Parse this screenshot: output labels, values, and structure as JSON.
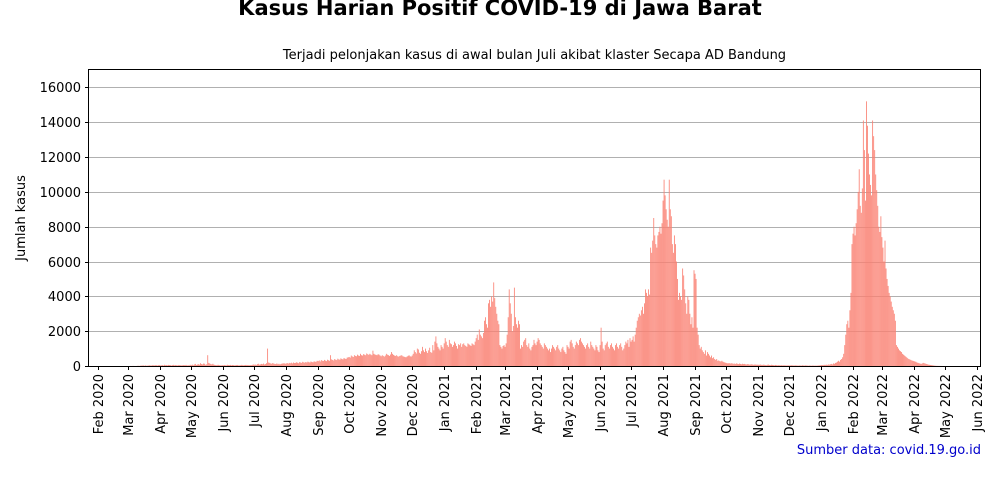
{
  "chart_data": {
    "type": "bar",
    "title": "Kasus Harian Positif COVID-19 di Jawa Barat",
    "subtitle": "Terjadi pelonjakan kasus di awal bulan Juli akibat klaster Secapa AD Bandung",
    "xlabel": "",
    "ylabel": "Jumlah kasus",
    "ylim": [
      0,
      17000
    ],
    "y_ticks": [
      0,
      2000,
      4000,
      6000,
      8000,
      10000,
      12000,
      14000,
      16000
    ],
    "y_tick_labels": [
      "0",
      "2000",
      "4000",
      "6000",
      "8000",
      "10000",
      "12000",
      "14000",
      "16000"
    ],
    "x_ticks": [
      "2020-02-01",
      "2020-03-01",
      "2020-04-01",
      "2020-05-01",
      "2020-06-01",
      "2020-07-01",
      "2020-08-01",
      "2020-09-01",
      "2020-10-01",
      "2020-11-01",
      "2020-12-01",
      "2021-01-01",
      "2021-02-01",
      "2021-03-01",
      "2021-04-01",
      "2021-05-01",
      "2021-06-01",
      "2021-07-01",
      "2021-08-01",
      "2021-09-01",
      "2021-10-01",
      "2021-11-01",
      "2021-12-01",
      "2022-01-01",
      "2022-02-01",
      "2022-03-01",
      "2022-04-01",
      "2022-05-01",
      "2022-06-01"
    ],
    "x_tick_labels": [
      "Feb 2020",
      "Mar 2020",
      "Apr 2020",
      "May 2020",
      "Jun 2020",
      "Jul 2020",
      "Aug 2020",
      "Sep 2020",
      "Oct 2020",
      "Nov 2020",
      "Dec 2020",
      "Jan 2021",
      "Feb 2021",
      "Mar 2021",
      "Apr 2021",
      "May 2021",
      "Jun 2021",
      "Jul 2021",
      "Aug 2021",
      "Sep 2021",
      "Oct 2021",
      "Nov 2021",
      "Dec 2021",
      "Jan 2022",
      "Feb 2022",
      "Mar 2022",
      "Apr 2022",
      "May 2022",
      "Jun 2022"
    ],
    "xlim": [
      "2020-01-23",
      "2022-06-04"
    ],
    "grid": "horizontal",
    "color": "#fa8072",
    "series": [
      {
        "daily_from": "2020-03-01",
        "values": [
          0,
          0,
          3,
          2,
          4,
          5,
          2,
          1,
          3,
          10,
          12,
          8,
          20,
          25,
          30,
          35,
          15,
          40,
          12,
          28,
          33,
          45,
          20,
          38,
          50,
          30,
          42,
          55,
          25,
          48,
          60,
          35,
          40,
          55,
          30,
          70,
          45,
          50,
          38,
          62,
          55,
          48,
          30,
          52,
          66,
          40,
          58,
          45,
          36,
          60,
          50,
          42,
          35,
          48,
          55,
          40,
          62,
          30,
          45,
          38,
          70,
          50,
          80,
          45,
          90,
          120,
          60,
          85,
          100,
          75,
          160,
          110,
          90,
          140,
          130,
          70,
          95,
          620,
          180,
          150,
          110,
          90,
          130,
          80,
          60,
          50,
          45,
          70,
          55,
          40,
          35,
          50,
          40,
          60,
          45,
          38,
          70,
          55,
          48,
          62,
          40,
          58,
          50,
          36,
          44,
          55,
          60,
          38,
          42,
          50,
          65,
          48,
          40,
          55,
          62,
          45,
          58,
          40,
          52,
          46,
          60,
          90,
          70,
          85,
          60,
          110,
          130,
          80,
          95,
          120,
          100,
          140,
          90,
          110,
          160,
          1000,
          200,
          180,
          150,
          130,
          170,
          140,
          120,
          110,
          150,
          100,
          130,
          90,
          120,
          140,
          150,
          160,
          130,
          150,
          170,
          140,
          180,
          160,
          190,
          150,
          200,
          170,
          180,
          210,
          190,
          160,
          220,
          200,
          180,
          240,
          210,
          190,
          230,
          200,
          250,
          220,
          200,
          260,
          230,
          210,
          270,
          240,
          250,
          300,
          280,
          320,
          260,
          340,
          300,
          290,
          350,
          310,
          280,
          360,
          330,
          300,
          620,
          380,
          350,
          320,
          400,
          360,
          340,
          420,
          380,
          360,
          440,
          400,
          380,
          460,
          420,
          400,
          480,
          500,
          520,
          480,
          600,
          550,
          520,
          620,
          580,
          560,
          650,
          600,
          580,
          700,
          620,
          600,
          680,
          650,
          620,
          720,
          680,
          640,
          700,
          660,
          620,
          880,
          700,
          660,
          640,
          620,
          680,
          650,
          600,
          560,
          620,
          580,
          540,
          600,
          700,
          650,
          620,
          580,
          660,
          800,
          700,
          640,
          600,
          580,
          620,
          560,
          540,
          580,
          600,
          620,
          560,
          540,
          520,
          500,
          540,
          580,
          620,
          560,
          540,
          600,
          700,
          900,
          800,
          720,
          1000,
          950,
          760,
          700,
          850,
          1100,
          900,
          800,
          1000,
          850,
          750,
          900,
          1050,
          800,
          760,
          1200,
          900,
          1400,
          1700,
          1300,
          1100,
          1000,
          900,
          1200,
          1100,
          1000,
          1300,
          1600,
          1400,
          1200,
          1100,
          1500,
          1300,
          1250,
          1100,
          1200,
          1400,
          1300,
          1150,
          1000,
          1250,
          1200,
          1300,
          1100,
          1250,
          1300,
          1200,
          1150,
          1100,
          1300,
          1250,
          1200,
          1150,
          1300,
          1250,
          1200,
          1400,
          1600,
          1800,
          1500,
          2100,
          1800,
          1700,
          1600,
          1900,
          2600,
          2800,
          2400,
          2200,
          3600,
          3800,
          3400,
          4000,
          3700,
          4800,
          3900,
          3400,
          3000,
          2600,
          2400,
          1200,
          1100,
          1000,
          1150,
          1200,
          1100,
          1300,
          1800,
          2800,
          4400,
          3600,
          3000,
          2000,
          2300,
          4500,
          2800,
          2400,
          2200,
          2600,
          2400,
          1000,
          1200,
          1100,
          1400,
          1500,
          1600,
          1200,
          1100,
          1300,
          1000,
          900,
          1100,
          1200,
          1500,
          1300,
          1200,
          1400,
          1600,
          1500,
          1300,
          1200,
          1100,
          1000,
          1300,
          1200,
          1100,
          1000,
          900,
          1000,
          800,
          1000,
          1200,
          1100,
          1000,
          900,
          1100,
          1200,
          1000,
          900,
          800,
          1000,
          1100,
          900,
          800,
          700,
          1200,
          1100,
          1000,
          1400,
          1500,
          1300,
          1100,
          1000,
          1200,
          1400,
          1300,
          1200,
          1500,
          1600,
          1400,
          1300,
          1200,
          1100,
          1000,
          1200,
          1300,
          1100,
          1000,
          1400,
          1200,
          1100,
          1000,
          900,
          1200,
          1100,
          900,
          800,
          1200,
          2200,
          1400,
          1000,
          900,
          1200,
          1300,
          1400,
          1100,
          1000,
          1200,
          1300,
          1100,
          1000,
          900,
          1200,
          1300,
          1100,
          1000,
          1200,
          1300,
          1100,
          900,
          1000,
          1200,
          1400,
          1300,
          1500,
          1100,
          1600,
          1400,
          1500,
          1700,
          1400,
          1800,
          2200,
          2600,
          2800,
          3000,
          2900,
          3200,
          3400,
          3000,
          3600,
          4400,
          4200,
          4000,
          4400,
          4100,
          6800,
          6500,
          7200,
          8500,
          7500,
          7000,
          6800,
          7500,
          7700,
          8000,
          7600,
          8200,
          9500,
          10700,
          9800,
          9000,
          8400,
          8000,
          10700,
          9000,
          8600,
          7000,
          6500,
          7500,
          7000,
          6000,
          5000,
          3800,
          4200,
          4000,
          3800,
          5600,
          5200,
          4400,
          3600,
          3000,
          4000,
          3800,
          3000,
          2400,
          2800,
          2200,
          5500,
          5300,
          5000,
          2200,
          1800,
          1200,
          1000,
          1100,
          900,
          800,
          700,
          900,
          600,
          800,
          700,
          600,
          500,
          600,
          450,
          500,
          400,
          350,
          400,
          300,
          320,
          280,
          260,
          300,
          250,
          220,
          200,
          180,
          160,
          150,
          170,
          140,
          160,
          150,
          130,
          140,
          120,
          150,
          130,
          110,
          140,
          120,
          100,
          130,
          110,
          120,
          100,
          90,
          110,
          100,
          80,
          90,
          100,
          80,
          70,
          90,
          80,
          70,
          80,
          60,
          90,
          70,
          60,
          80,
          70,
          60,
          50,
          70,
          80,
          60,
          50,
          70,
          60,
          50,
          40,
          60,
          50,
          40,
          50,
          45,
          40,
          50,
          35,
          45,
          40,
          35,
          30,
          40,
          35,
          30,
          45,
          40,
          35,
          30,
          40,
          35,
          30,
          25,
          35,
          30,
          25,
          40,
          30,
          25,
          35,
          30,
          25,
          20,
          30,
          25,
          20,
          30,
          25,
          20,
          25,
          20,
          30,
          35,
          40,
          50,
          60,
          45,
          70,
          55,
          80,
          60,
          90,
          75,
          100,
          120,
          90,
          150,
          130,
          180,
          200,
          250,
          300,
          250,
          350,
          400,
          500,
          700,
          1200,
          1800,
          2400,
          2600,
          2200,
          3200,
          4200,
          7000,
          7600,
          8000,
          7500,
          8200,
          9000,
          10000,
          11300,
          9200,
          8800,
          10200,
          14100,
          12400,
          9500,
          15200,
          13800,
          12200,
          11000,
          10400,
          9800,
          14100,
          13200,
          12400,
          11000,
          10100,
          9200,
          8000,
          7700,
          8600,
          7400,
          6800,
          6000,
          7200,
          5600,
          5000,
          4600,
          4200,
          4000,
          3700,
          3400,
          3200,
          3000,
          2600,
          1200,
          1100,
          1000,
          900,
          850,
          800,
          700,
          650,
          600,
          550,
          500,
          450,
          400,
          380,
          350,
          320,
          300,
          280,
          260,
          240,
          200,
          180,
          160,
          140,
          120,
          150,
          180,
          160,
          140,
          120,
          100,
          80,
          70,
          60,
          50,
          40,
          30,
          20,
          15,
          10,
          8,
          6,
          5,
          4,
          3,
          2,
          1
        ]
      }
    ]
  },
  "source_note": "Sumber data: covid.19.go.id"
}
